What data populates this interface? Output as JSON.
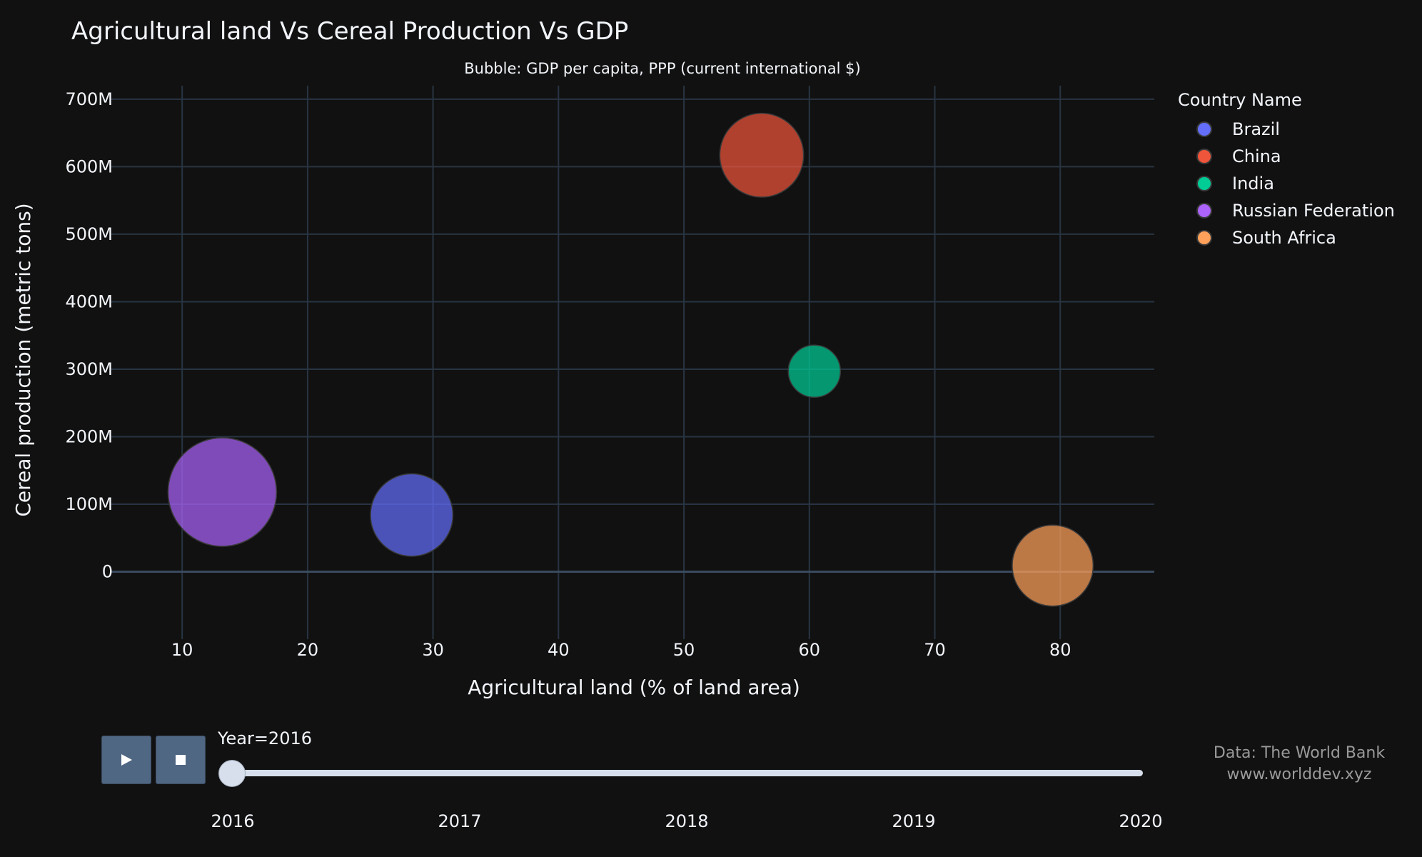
{
  "chart_data": {
    "type": "scatter",
    "title": "Agricultural land Vs Cereal Production Vs GDP",
    "subtitle": "Bubble: GDP per capita, PPP (current international $)",
    "xlabel": "Agricultural land (% of land area)",
    "ylabel": "Cereal production (metric tons)",
    "xlim": [
      4.3,
      87.5
    ],
    "ylim": [
      -100000000,
      720000000
    ],
    "xticks": [
      10,
      20,
      30,
      40,
      50,
      60,
      70,
      80
    ],
    "xtick_labels": [
      "10",
      "20",
      "30",
      "40",
      "50",
      "60",
      "70",
      "80"
    ],
    "yticks": [
      0,
      100000000,
      200000000,
      300000000,
      400000000,
      500000000,
      600000000,
      700000000
    ],
    "ytick_labels": [
      "0",
      "100M",
      "200M",
      "300M",
      "400M",
      "500M",
      "600M",
      "700M"
    ],
    "grid": true,
    "legend_title": "Country Name",
    "legend_position": "right",
    "series": [
      {
        "name": "Brazil",
        "color": "#636efa",
        "x": 28.3,
        "y": 84000000,
        "size": 15000
      },
      {
        "name": "China",
        "color": "#ef553b",
        "x": 56.2,
        "y": 617000000,
        "size": 15500
      },
      {
        "name": "India",
        "color": "#00cc96",
        "x": 60.4,
        "y": 297000000,
        "size": 6000
      },
      {
        "name": "Russian Federation",
        "color": "#ab63fa",
        "x": 13.2,
        "y": 118000000,
        "size": 26000
      },
      {
        "name": "South Africa",
        "color": "#ffa15a",
        "x": 79.4,
        "y": 9000000,
        "size": 14500
      }
    ]
  },
  "slider": {
    "label": "Year=2016",
    "current": "2016",
    "steps": [
      "2016",
      "2017",
      "2018",
      "2019",
      "2020"
    ]
  },
  "controls": {
    "play_icon": "play-icon",
    "stop_icon": "stop-icon"
  },
  "source": {
    "line1": "Data: The World Bank",
    "line2": "www.worlddev.xyz"
  }
}
